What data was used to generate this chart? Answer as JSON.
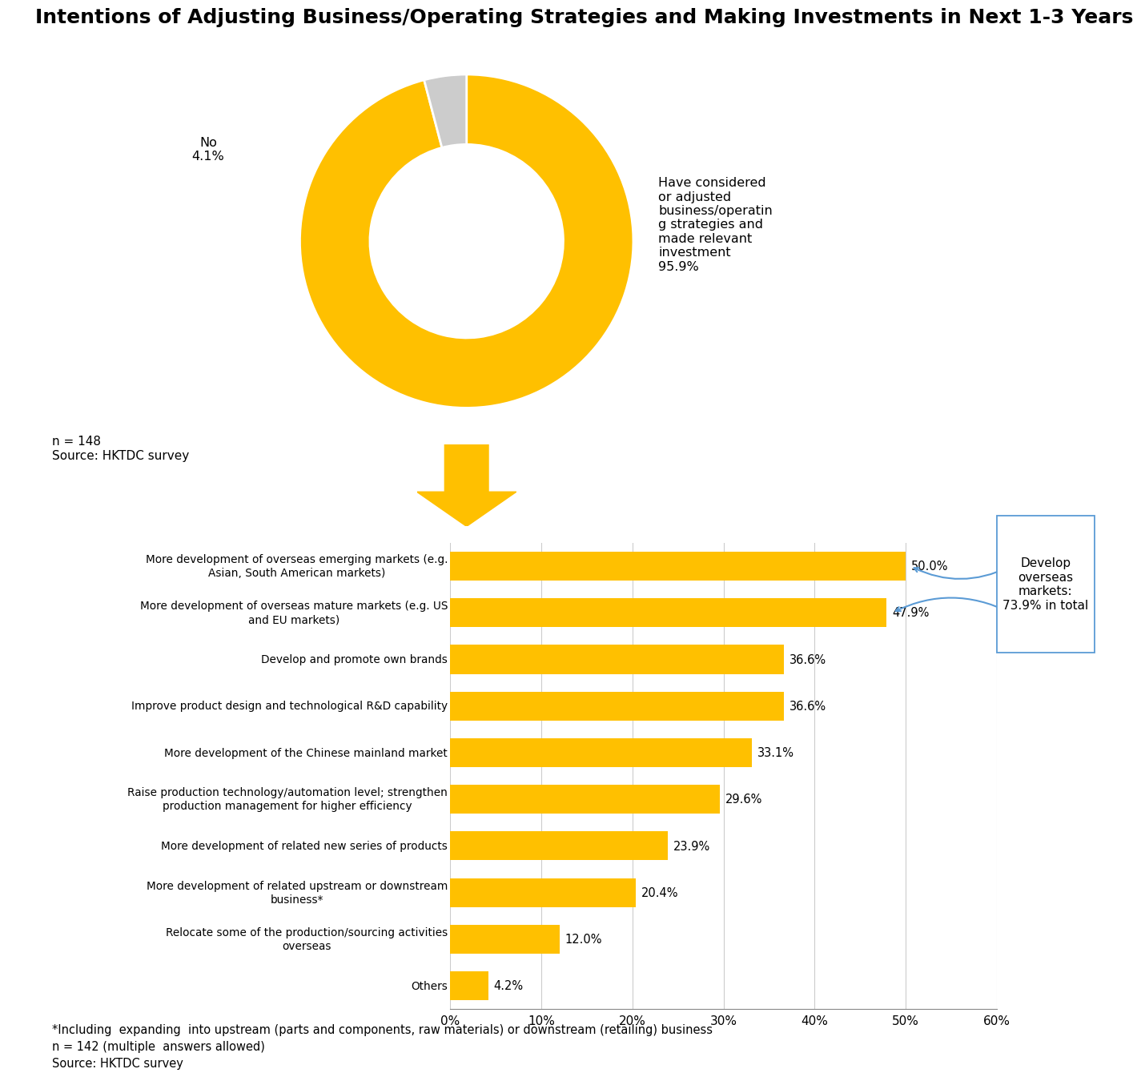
{
  "title": "Intentions of Adjusting Business/Operating Strategies and Making Investments in Next 1-3 Years",
  "title_fontsize": 18,
  "pie_values": [
    95.9,
    4.1
  ],
  "pie_colors": [
    "#FFC000",
    "#CCCCCC"
  ],
  "pie_n_text": "n = 148\nSource: HKTDC survey",
  "pie_label_yes": "Have considered\nor adjusted\nbusiness/operatin\ng strategies and\nmade relevant\ninvestment\n95.9%",
  "pie_label_no": "No\n4.1%",
  "bar_categories": [
    "More development of overseas emerging markets (e.g.\nAsian, South American markets)",
    "More development of overseas mature markets (e.g. US\nand EU markets)",
    "Develop and promote own brands",
    "Improve product design and technological R&D capability",
    "More development of the Chinese mainland market",
    "Raise production technology/automation level; strengthen\nproduction management for higher efficiency",
    "More development of related new series of products",
    "More development of related upstream or downstream\nbusiness*",
    "Relocate some of the production/sourcing activities\noverseas",
    "Others"
  ],
  "bar_values": [
    50.0,
    47.9,
    36.6,
    36.6,
    33.1,
    29.6,
    23.9,
    20.4,
    12.0,
    4.2
  ],
  "bar_color": "#FFC000",
  "bar_xlim": [
    0,
    60
  ],
  "bar_xticks": [
    0,
    10,
    20,
    30,
    40,
    50,
    60
  ],
  "bar_xtick_labels": [
    "0%",
    "10%",
    "20%",
    "30%",
    "40%",
    "50%",
    "60%"
  ],
  "annotation_box_text": "Develop\noverseas\nmarkets:\n73.9% in total",
  "footnote": "*Including  expanding  into upstream (parts and components, raw materials) or downstream (retailing) business\nn = 142 (multiple  answers allowed)\nSource: HKTDC survey",
  "background_color": "#FFFFFF",
  "arrow_color": "#FFC000",
  "annot_arrow_color": "#5B9BD5"
}
